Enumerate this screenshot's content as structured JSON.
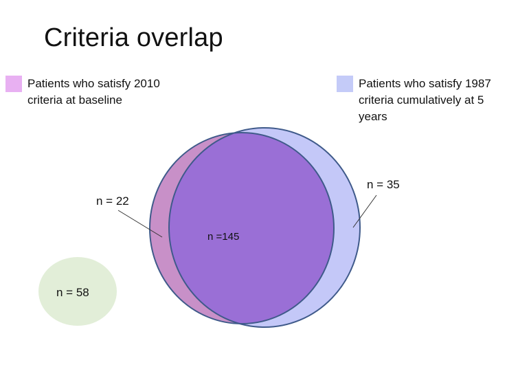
{
  "title": "Criteria overlap",
  "legend": [
    {
      "label_lines": [
        "Patients who satisfy 2010",
        "criteria at baseline"
      ],
      "color": "#e8b0f2"
    },
    {
      "label_lines": [
        "Patients who satisfy 1987",
        "criteria cumulatively at 5",
        "years"
      ],
      "color": "#c4cbf8"
    }
  ],
  "venn": {
    "only_2010_label": "n = 22",
    "only_1987_label": "n = 35",
    "both_label": "n =145",
    "neither_label": "n = 58",
    "colors": {
      "only_2010": "#c890c8",
      "only_1987": "#c4c8f8",
      "both": "#9a6fd6",
      "neither": "#e2eed8",
      "outline": "#3f5a8a"
    }
  }
}
